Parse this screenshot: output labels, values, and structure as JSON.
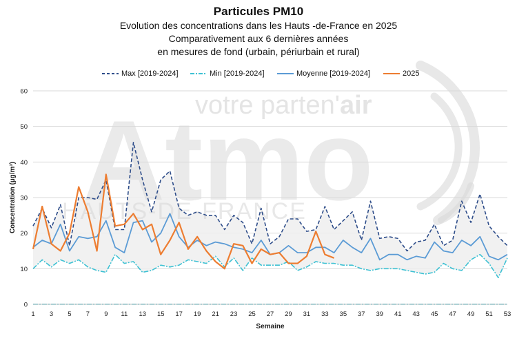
{
  "header": {
    "title": "Particules PM10",
    "subtitle_lines": [
      "Evolution des concentrations dans les Hauts -de-France en 2025",
      "Comparativement aux 6 dernières années",
      "en mesures de fond (urbain, périurbain et rural)"
    ]
  },
  "watermark": {
    "brand": "Atmo",
    "slogan_prefix": "votre parten'",
    "slogan_suffix": "air",
    "region": "HAUTS-DE-FRANCE"
  },
  "colors": {
    "max": "#2E4D8A",
    "min": "#3EC1D3",
    "moyenne": "#5B9BD5",
    "y2025": "#ED7D31",
    "band": "#EEEEEE"
  },
  "chart_data": {
    "type": "line",
    "ylabel": "Concentration (µg/m³)",
    "xlabel": "Semaine",
    "ylim": [
      0,
      60
    ],
    "yticks": [
      0,
      10,
      20,
      30,
      40,
      50,
      60
    ],
    "xlim": [
      1,
      53
    ],
    "xticks": [
      1,
      3,
      5,
      7,
      9,
      11,
      13,
      15,
      17,
      19,
      21,
      23,
      25,
      27,
      29,
      31,
      33,
      35,
      37,
      39,
      41,
      43,
      45,
      47,
      49,
      51,
      53
    ],
    "grid": true,
    "legend_position": "top",
    "band": {
      "between": [
        "Min [2019-2024]",
        "Max [2019-2024]"
      ]
    },
    "series": [
      {
        "name": "Max [2019-2024]",
        "style": "dashed",
        "x": [
          1,
          2,
          3,
          4,
          5,
          6,
          7,
          8,
          9,
          10,
          11,
          12,
          13,
          14,
          15,
          16,
          17,
          18,
          19,
          20,
          21,
          22,
          23,
          24,
          25,
          26,
          27,
          28,
          29,
          30,
          31,
          32,
          33,
          34,
          35,
          36,
          37,
          38,
          39,
          40,
          41,
          42,
          43,
          44,
          45,
          46,
          47,
          48,
          49,
          50,
          51,
          52,
          53
        ],
        "values": [
          22,
          27,
          21.5,
          28,
          16.5,
          30,
          30,
          29.5,
          35,
          21,
          21,
          45.5,
          35,
          26,
          35,
          37.5,
          27,
          25,
          26,
          25,
          25,
          21,
          25,
          23,
          17,
          27,
          17,
          19,
          24,
          24,
          20.5,
          21,
          27.5,
          21,
          23.5,
          26,
          18,
          29,
          18.5,
          19,
          18.5,
          15,
          17.5,
          18,
          22.5,
          16.5,
          18,
          29,
          23,
          31,
          22,
          19,
          16.5
        ]
      },
      {
        "name": "Min [2019-2024]",
        "style": "dashdot",
        "x": [
          1,
          2,
          3,
          4,
          5,
          6,
          7,
          8,
          9,
          10,
          11,
          12,
          13,
          14,
          15,
          16,
          17,
          18,
          19,
          20,
          21,
          22,
          23,
          24,
          25,
          26,
          27,
          28,
          29,
          30,
          31,
          32,
          33,
          34,
          35,
          36,
          37,
          38,
          39,
          40,
          41,
          42,
          43,
          44,
          45,
          46,
          47,
          48,
          49,
          50,
          51,
          52,
          53
        ],
        "values": [
          10,
          12.5,
          10.5,
          12.5,
          11.5,
          12.5,
          10.5,
          9.5,
          9,
          14,
          11.5,
          12,
          9,
          9.5,
          11,
          10.5,
          11,
          12.5,
          12,
          11.5,
          13.5,
          10.5,
          13,
          9.5,
          13,
          11,
          11,
          11,
          12,
          9.5,
          10.5,
          12,
          11.5,
          11.5,
          11,
          11,
          10,
          9.5,
          10,
          10,
          10,
          9.5,
          9,
          8.5,
          9,
          11.5,
          10,
          9.5,
          12.5,
          14,
          11.5,
          7.5,
          13
        ]
      },
      {
        "name": "Moyenne [2019-2024]",
        "style": "solid",
        "x": [
          1,
          2,
          3,
          4,
          5,
          6,
          7,
          8,
          9,
          10,
          11,
          12,
          13,
          14,
          15,
          16,
          17,
          18,
          19,
          20,
          21,
          22,
          23,
          24,
          25,
          26,
          27,
          28,
          29,
          30,
          31,
          32,
          33,
          34,
          35,
          36,
          37,
          38,
          39,
          40,
          41,
          42,
          43,
          44,
          45,
          46,
          47,
          48,
          49,
          50,
          51,
          52,
          53
        ],
        "values": [
          16,
          18,
          17,
          22.5,
          15,
          19,
          18.5,
          19,
          23.5,
          16,
          14.5,
          23,
          23.5,
          17.5,
          20,
          25.5,
          19,
          16,
          18,
          16.5,
          17.5,
          17,
          16,
          15.5,
          14.5,
          18,
          14,
          14.5,
          16.5,
          14.5,
          14.5,
          16,
          16,
          14.5,
          18,
          16,
          14.5,
          18.5,
          12.5,
          14,
          14,
          12.5,
          13.5,
          13,
          17.5,
          15,
          14.5,
          18,
          16.5,
          19,
          13.5,
          12.5,
          14
        ]
      },
      {
        "name": "2025",
        "style": "solid",
        "x": [
          1,
          2,
          3,
          4,
          5,
          6,
          7,
          8,
          9,
          10,
          11,
          12,
          13,
          14,
          15,
          16,
          17,
          18,
          19,
          20,
          21,
          22,
          23,
          24,
          25,
          26,
          27,
          28,
          29,
          30,
          31,
          32,
          33,
          34
        ],
        "values": [
          15.5,
          27.5,
          17,
          15,
          20,
          33,
          26,
          15,
          36.5,
          22,
          22.5,
          25.5,
          21,
          22.5,
          14,
          18,
          23,
          15.5,
          19,
          15,
          12,
          10,
          17,
          16.5,
          11.5,
          15.5,
          14,
          14.5,
          11.5,
          11.5,
          13.5,
          20.5,
          14,
          13
        ]
      }
    ]
  }
}
